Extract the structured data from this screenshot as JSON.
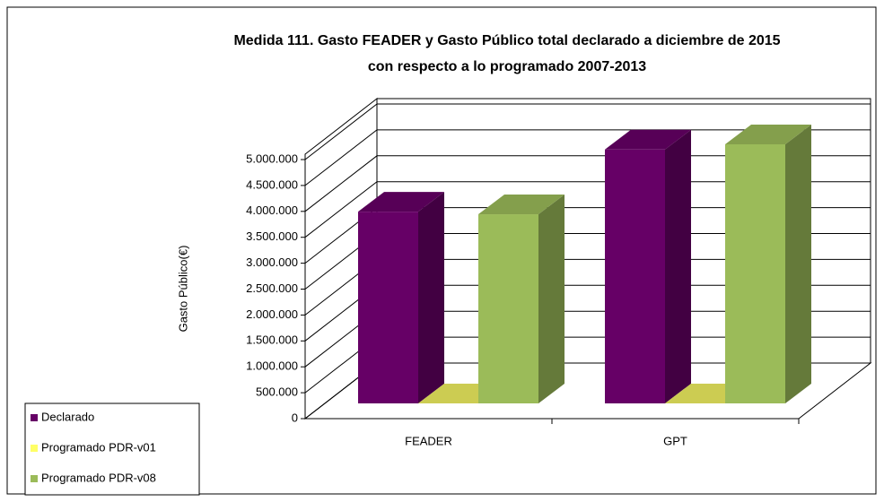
{
  "chart_data": {
    "type": "bar3d",
    "title": [
      "Medida 111. Gasto FEADER y Gasto Público total  declarado  a diciembre de  2015",
      "con respecto a lo programado 2007-2013"
    ],
    "ylabel": "Gasto Público(€)",
    "categories": [
      "FEADER",
      "GPT"
    ],
    "series": [
      {
        "name": "Declarado",
        "color": "#660066",
        "values": [
          3700000,
          4900000
        ]
      },
      {
        "name": "Programado PDR-v01",
        "color": "#ffff66",
        "values": [
          0,
          0
        ]
      },
      {
        "name": "Programado PDR-v08",
        "color": "#9bbb59",
        "values": [
          3650000,
          5000000
        ]
      }
    ],
    "ylim": [
      0,
      5000000
    ],
    "yticks": [
      {
        "value": 0,
        "label": "0"
      },
      {
        "value": 500000,
        "label": "500.000"
      },
      {
        "value": 1000000,
        "label": "1.000.000"
      },
      {
        "value": 1500000,
        "label": "1.500.000"
      },
      {
        "value": 2000000,
        "label": "2.000.000"
      },
      {
        "value": 2500000,
        "label": "2.500.000"
      },
      {
        "value": 3000000,
        "label": "3.000.000"
      },
      {
        "value": 3500000,
        "label": "3.500.000"
      },
      {
        "value": 4000000,
        "label": "4.000.000"
      },
      {
        "value": 4500000,
        "label": "4.500.000"
      },
      {
        "value": 5000000,
        "label": "5.000.000"
      }
    ],
    "grid": true,
    "legend": "bottom-left"
  }
}
